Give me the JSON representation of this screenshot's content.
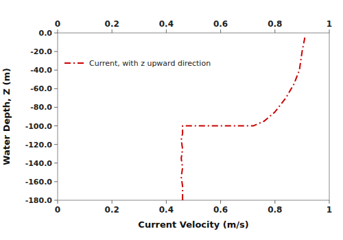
{
  "chart_data": {
    "type": "line",
    "x": [
      0.46,
      0.46,
      0.455,
      0.46,
      0.455,
      0.46,
      0.455,
      0.46,
      0.46,
      0.48,
      0.52,
      0.58,
      0.65,
      0.72,
      0.76,
      0.8,
      0.84,
      0.87,
      0.89,
      0.9,
      0.91
    ],
    "series": [
      {
        "name": "Current, with z upward direction",
        "color": "#CC0000",
        "line_style": "dash-dot",
        "values": [
          -180,
          -165,
          -155,
          -145,
          -135,
          -125,
          -115,
          -108,
          -100,
          -100,
          -100,
          -100,
          -100,
          -100,
          -95,
          -85,
          -70,
          -55,
          -40,
          -20,
          -5
        ]
      }
    ],
    "xlabel": "Current Velocity (m/s)",
    "ylabel": "Water Depth, Z (m)",
    "xlim": [
      0.0,
      1.0
    ],
    "ylim": [
      -180.0,
      0.0
    ],
    "xticks": [
      0,
      0.2,
      0.4,
      0.6,
      0.8,
      1
    ],
    "yticks": [
      {
        "value": 0,
        "label": "0.0"
      },
      {
        "value": -20,
        "label": "-20.0"
      },
      {
        "value": -40,
        "label": "-40.0"
      },
      {
        "value": -60,
        "label": "-60.0"
      },
      {
        "value": -80,
        "label": "-80.0"
      },
      {
        "value": -100,
        "label": "-100.0"
      },
      {
        "value": -120,
        "label": "-120.0"
      },
      {
        "value": -140,
        "label": "-140.0"
      },
      {
        "value": -160,
        "label": "-160.0"
      },
      {
        "value": -180,
        "label": "-180.0"
      }
    ],
    "grid": false,
    "legend": "upper left"
  }
}
